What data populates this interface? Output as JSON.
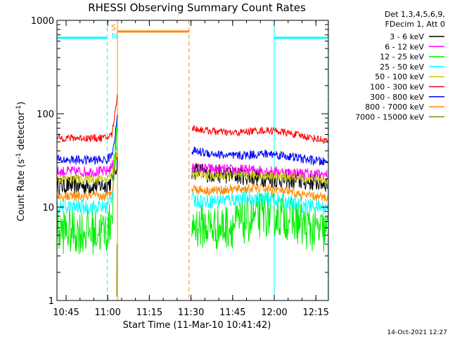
{
  "chart_data": {
    "type": "line",
    "title": "RHESSI Observing Summary Count Rates",
    "xlabel": "Start Time (11-Mar-10 10:41:42)",
    "ylabel_main": "Count Rate (s",
    "ylabel_sup1": "-1",
    "ylabel_mid": " detector",
    "ylabel_sup2": "-1",
    "ylabel_end": ")",
    "y_scale": "log",
    "ylim": [
      1,
      1000
    ],
    "xlim_minutes": [
      41.7,
      139.5
    ],
    "x_unit": "minutes after 10:00 UT on 11-Mar-10",
    "x_ticks": [
      {
        "label": "10:45",
        "minute": 45
      },
      {
        "label": "11:00",
        "minute": 60
      },
      {
        "label": "11:15",
        "minute": 75
      },
      {
        "label": "11:30",
        "minute": 90
      },
      {
        "label": "11:45",
        "minute": 105
      },
      {
        "label": "12:00",
        "minute": 120
      },
      {
        "label": "12:15",
        "minute": 135
      }
    ],
    "y_ticks": [
      {
        "label": "1",
        "value": 1
      },
      {
        "label": "10",
        "value": 10
      },
      {
        "label": "100",
        "value": 100
      },
      {
        "label": "1000",
        "value": 1000
      }
    ],
    "legend": {
      "placement": "top-right, outside plot",
      "header": [
        "Det 1,3,4,5,6,9,",
        "FDecim 1, Att 0"
      ]
    },
    "series": [
      {
        "name": "3 - 6 keV",
        "color": "#000000",
        "noise": 0.1,
        "points": [
          [
            41.7,
            17
          ],
          [
            59.5,
            17
          ],
          [
            61.5,
            19
          ],
          [
            62.8,
            26
          ],
          [
            63.5,
            30
          ],
          [
            90.3,
            25
          ],
          [
            96,
            23
          ],
          [
            105,
            22
          ],
          [
            114,
            21
          ],
          [
            120,
            20
          ],
          [
            130,
            19
          ],
          [
            139.4,
            18
          ]
        ]
      },
      {
        "name": "6 - 12 keV",
        "color": "#ff00ff",
        "noise": 0.06,
        "points": [
          [
            41.7,
            24
          ],
          [
            59.5,
            24
          ],
          [
            61.5,
            27
          ],
          [
            62.8,
            34
          ],
          [
            63.5,
            38
          ],
          [
            90.3,
            26
          ],
          [
            105,
            25
          ],
          [
            114,
            25
          ],
          [
            120,
            24
          ],
          [
            130,
            23
          ],
          [
            139.4,
            22
          ]
        ]
      },
      {
        "name": "12 - 25 keV",
        "color": "#00ee00",
        "noise": 0.25,
        "points": [
          [
            41.7,
            5.5
          ],
          [
            59.5,
            5.5
          ],
          [
            60.5,
            6
          ],
          [
            61.5,
            9
          ],
          [
            62.6,
            40
          ],
          [
            63.5,
            50
          ],
          [
            90.3,
            6.5
          ],
          [
            100,
            6
          ],
          [
            106,
            6.5
          ],
          [
            112,
            7.5
          ],
          [
            116,
            8.5
          ],
          [
            120,
            8.5
          ],
          [
            124,
            8
          ],
          [
            128,
            7
          ],
          [
            132,
            6
          ],
          [
            136,
            5.5
          ],
          [
            139.4,
            5.3
          ]
        ]
      },
      {
        "name": "25 - 50 keV",
        "color": "#00ffff",
        "noise": 0.08,
        "points": [
          [
            41.7,
            10
          ],
          [
            59.5,
            10
          ],
          [
            61.5,
            13
          ],
          [
            62.8,
            30
          ],
          [
            63.5,
            42
          ],
          [
            90.3,
            12
          ],
          [
            96,
            11.5
          ],
          [
            105,
            12.2
          ],
          [
            114,
            12.5
          ],
          [
            120,
            12
          ],
          [
            130,
            10.5
          ],
          [
            139.4,
            9.8
          ]
        ]
      },
      {
        "name": "50 - 100 keV",
        "color": "#cccc00",
        "noise": 0.05,
        "points": [
          [
            41.7,
            20
          ],
          [
            59.5,
            20
          ],
          [
            61.5,
            23
          ],
          [
            62.8,
            34
          ],
          [
            63.5,
            40
          ],
          [
            90.3,
            22
          ],
          [
            105,
            21.5
          ],
          [
            114,
            22
          ],
          [
            120,
            21.5
          ],
          [
            130,
            20.5
          ],
          [
            139.4,
            19.5
          ]
        ]
      },
      {
        "name": "100 - 300 keV",
        "color": "#ff0000",
        "noise": 0.04,
        "points": [
          [
            41.7,
            55
          ],
          [
            59.5,
            55
          ],
          [
            61.5,
            60
          ],
          [
            62.8,
            110
          ],
          [
            63.5,
            170
          ],
          [
            90.3,
            70
          ],
          [
            96,
            66
          ],
          [
            105,
            62
          ],
          [
            114,
            66
          ],
          [
            120,
            66
          ],
          [
            130,
            58
          ],
          [
            139.4,
            51
          ]
        ]
      },
      {
        "name": "300 - 800 keV",
        "color": "#0000ff",
        "noise": 0.05,
        "points": [
          [
            41.7,
            32
          ],
          [
            59.5,
            32
          ],
          [
            61.5,
            36
          ],
          [
            62.8,
            65
          ],
          [
            63.5,
            90
          ],
          [
            90.3,
            40
          ],
          [
            96,
            38
          ],
          [
            105,
            35
          ],
          [
            114,
            37
          ],
          [
            120,
            37
          ],
          [
            130,
            33
          ],
          [
            139.4,
            30
          ]
        ]
      },
      {
        "name": "800 - 7000 keV",
        "color": "#ff8800",
        "noise": 0.05,
        "points": [
          [
            41.7,
            13
          ],
          [
            59.5,
            13
          ],
          [
            61.5,
            15
          ],
          [
            62.8,
            30
          ],
          [
            63.5,
            40
          ],
          [
            90.3,
            16
          ],
          [
            96,
            15
          ],
          [
            105,
            15.5
          ],
          [
            114,
            16
          ],
          [
            120,
            15.5
          ],
          [
            130,
            13.5
          ],
          [
            139.4,
            12.5
          ]
        ]
      },
      {
        "name": "7000 - 15000 keV",
        "color": "#888800",
        "noise": 0.0,
        "points": [
          [
            63.2,
            1.1
          ],
          [
            63.3,
            4
          ]
        ]
      }
    ],
    "markers": {
      "night": [
        {
          "label": "N",
          "start": 41.7,
          "end": 59.8,
          "color": "#00ffff"
        },
        {
          "label": "",
          "start": 120,
          "end": 139.4,
          "color": "#00ffff"
        }
      ],
      "saa": [
        {
          "label": "S",
          "start": 63.5,
          "end": 89.3,
          "color": "#ff8800"
        }
      ]
    },
    "footer_date": "14-Oct-2021 12:27"
  }
}
